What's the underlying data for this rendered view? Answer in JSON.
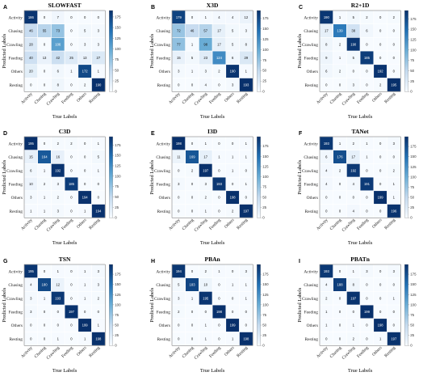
{
  "figure": {
    "xlabel": "True Labels",
    "ylabel": "Predicted Labels",
    "classes": [
      "Activity",
      "Chasing",
      "Crawling",
      "Feeding",
      "Others",
      "Resting"
    ],
    "colormap": [
      "#f7fbff",
      "#c6dbef",
      "#6baed6",
      "#2171b5",
      "#08306b"
    ],
    "colorbar_ticks": [
      0,
      25,
      50,
      75,
      100,
      125,
      150,
      175
    ]
  },
  "chart_data": [
    {
      "type": "heatmap",
      "letter": "A",
      "title": "SLOWFAST",
      "categories": [
        "Activity",
        "Chasing",
        "Crawling",
        "Feeding",
        "Others",
        "Resting"
      ],
      "values": [
        [
          186,
          0,
          7,
          0,
          0,
          0
        ],
        [
          46,
          55,
          73,
          0,
          5,
          3
        ],
        [
          28,
          0,
          106,
          0,
          3,
          3
        ],
        [
          40,
          13,
          42,
          25,
          13,
          27
        ],
        [
          20,
          0,
          6,
          1,
          172,
          1
        ],
        [
          0,
          0,
          8,
          0,
          2,
          190
        ]
      ],
      "xlabel": "True Labels",
      "ylabel": "Predicted Labels",
      "vmax": 190
    },
    {
      "type": "heatmap",
      "letter": "B",
      "title": "X3D",
      "categories": [
        "Activity",
        "Chasing",
        "Crawling",
        "Feeding",
        "Others",
        "Resting"
      ],
      "values": [
        [
          179,
          0,
          1,
          4,
          4,
          12
        ],
        [
          72,
          46,
          57,
          17,
          5,
          3
        ],
        [
          77,
          1,
          98,
          17,
          5,
          8
        ],
        [
          15,
          5,
          23,
          124,
          6,
          29
        ],
        [
          3,
          1,
          3,
          2,
          190,
          1
        ],
        [
          0,
          0,
          4,
          0,
          3,
          193
        ]
      ],
      "xlabel": "True Labels",
      "ylabel": "Predicted Labels",
      "vmax": 193
    },
    {
      "type": "heatmap",
      "letter": "C",
      "title": "R2+1D",
      "categories": [
        "Activity",
        "Chasing",
        "Crawling",
        "Feeding",
        "Others",
        "Resting"
      ],
      "values": [
        [
          190,
          1,
          5,
          2,
          0,
          2
        ],
        [
          17,
          139,
          38,
          6,
          0,
          0
        ],
        [
          8,
          2,
          190,
          0,
          0,
          0
        ],
        [
          9,
          1,
          5,
          185,
          0,
          0
        ],
        [
          6,
          2,
          0,
          0,
          192,
          0
        ],
        [
          0,
          0,
          3,
          0,
          2,
          195
        ]
      ],
      "xlabel": "True Labels",
      "ylabel": "Predicted Labels",
      "vmax": 195
    },
    {
      "type": "heatmap",
      "letter": "D",
      "title": "C3D",
      "categories": [
        "Activity",
        "Chasing",
        "Crawling",
        "Feeding",
        "Others",
        "Resting"
      ],
      "values": [
        [
          195,
          0,
          2,
          2,
          0,
          1
        ],
        [
          15,
          164,
          16,
          0,
          0,
          5
        ],
        [
          6,
          1,
          192,
          0,
          0,
          1
        ],
        [
          10,
          2,
          3,
          185,
          0,
          0
        ],
        [
          3,
          1,
          2,
          0,
          194,
          0
        ],
        [
          1,
          1,
          3,
          0,
          1,
          194
        ]
      ],
      "xlabel": "True Labels",
      "ylabel": "Predicted Labels",
      "vmax": 195
    },
    {
      "type": "heatmap",
      "letter": "E",
      "title": "I3D",
      "categories": [
        "Activity",
        "Chasing",
        "Crawling",
        "Feeding",
        "Others",
        "Resting"
      ],
      "values": [
        [
          198,
          0,
          1,
          0,
          0,
          1
        ],
        [
          11,
          169,
          17,
          1,
          1,
          1
        ],
        [
          0,
          2,
          197,
          0,
          1,
          0
        ],
        [
          3,
          0,
          3,
          193,
          0,
          1
        ],
        [
          0,
          0,
          2,
          0,
          198,
          0
        ],
        [
          0,
          0,
          1,
          0,
          2,
          197
        ]
      ],
      "xlabel": "True Labels",
      "ylabel": "Predicted Labels",
      "vmax": 198
    },
    {
      "type": "heatmap",
      "letter": "F",
      "title": "TANet",
      "categories": [
        "Activity",
        "Chasing",
        "Crawling",
        "Feeding",
        "Others",
        "Resting"
      ],
      "values": [
        [
          193,
          1,
          2,
          1,
          0,
          3
        ],
        [
          6,
          176,
          17,
          1,
          0,
          0
        ],
        [
          4,
          2,
          192,
          0,
          0,
          2
        ],
        [
          4,
          0,
          4,
          191,
          0,
          1
        ],
        [
          0,
          0,
          0,
          0,
          199,
          1
        ],
        [
          0,
          0,
          4,
          0,
          0,
          196
        ]
      ],
      "xlabel": "True Labels",
      "ylabel": "Predicted Labels",
      "vmax": 199
    },
    {
      "type": "heatmap",
      "letter": "G",
      "title": "TSN",
      "categories": [
        "Activity",
        "Chasing",
        "Crawling",
        "Feeding",
        "Others",
        "Resting"
      ],
      "values": [
        [
          195,
          0,
          1,
          0,
          1,
          3
        ],
        [
          4,
          180,
          12,
          0,
          1,
          3
        ],
        [
          3,
          1,
          193,
          0,
          1,
          2
        ],
        [
          3,
          0,
          0,
          197,
          0,
          0
        ],
        [
          0,
          0,
          0,
          0,
          199,
          1
        ],
        [
          0,
          0,
          1,
          0,
          1,
          198
        ]
      ],
      "xlabel": "True Labels",
      "ylabel": "Predicted Labels",
      "vmax": 199
    },
    {
      "type": "heatmap",
      "letter": "H",
      "title": "PBAn",
      "categories": [
        "Activity",
        "Chasing",
        "Crawling",
        "Feeding",
        "Others",
        "Resting"
      ],
      "values": [
        [
          194,
          0,
          2,
          1,
          0,
          3
        ],
        [
          5,
          183,
          10,
          0,
          1,
          1
        ],
        [
          3,
          1,
          195,
          0,
          0,
          1
        ],
        [
          2,
          0,
          0,
          198,
          0,
          0
        ],
        [
          0,
          0,
          1,
          0,
          199,
          0
        ],
        [
          0,
          0,
          1,
          0,
          1,
          198
        ]
      ],
      "xlabel": "True Labels",
      "ylabel": "Predicted Labels",
      "vmax": 199
    },
    {
      "type": "heatmap",
      "letter": "I",
      "title": "PBATn",
      "categories": [
        "Activity",
        "Chasing",
        "Crawling",
        "Feeding",
        "Others",
        "Resting"
      ],
      "values": [
        [
          193,
          0,
          1,
          3,
          0,
          3
        ],
        [
          4,
          188,
          8,
          0,
          0,
          0
        ],
        [
          2,
          0,
          197,
          0,
          0,
          1
        ],
        [
          1,
          0,
          0,
          199,
          0,
          0
        ],
        [
          1,
          0,
          1,
          0,
          198,
          0
        ],
        [
          0,
          0,
          2,
          0,
          1,
          197
        ]
      ],
      "xlabel": "True Labels",
      "ylabel": "Predicted Labels",
      "vmax": 199
    }
  ]
}
